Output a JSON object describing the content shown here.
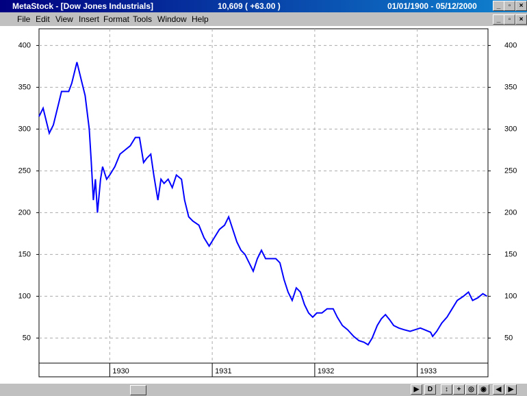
{
  "window": {
    "title": "MetaStock - [Dow Jones Industrials]",
    "quote": "10,609 ( +63.00 )",
    "date_range": "01/01/1900 - 05/12/2000"
  },
  "menu": [
    "File",
    "Edit",
    "View",
    "Insert",
    "Format",
    "Tools",
    "Window",
    "Help"
  ],
  "chart_data": {
    "type": "line",
    "color": "#0000ff",
    "grid": true,
    "xlim": [
      1929.31,
      1933.69
    ],
    "xticks": [
      1930,
      1931,
      1932,
      1933
    ],
    "ylim": [
      20,
      420
    ],
    "yticks": [
      50,
      100,
      150,
      200,
      250,
      300,
      350,
      400
    ],
    "x": [
      1929.31,
      1929.35,
      1929.38,
      1929.41,
      1929.45,
      1929.5,
      1929.53,
      1929.6,
      1929.63,
      1929.68,
      1929.72,
      1929.76,
      1929.8,
      1929.82,
      1929.84,
      1929.86,
      1929.88,
      1929.91,
      1929.93,
      1929.97,
      1930.0,
      1930.05,
      1930.1,
      1930.15,
      1930.2,
      1930.25,
      1930.29,
      1930.33,
      1930.36,
      1930.4,
      1930.43,
      1930.47,
      1930.5,
      1930.53,
      1930.57,
      1930.61,
      1930.65,
      1930.7,
      1930.73,
      1930.77,
      1930.81,
      1930.87,
      1930.92,
      1930.97,
      1931.02,
      1931.07,
      1931.12,
      1931.16,
      1931.2,
      1931.24,
      1931.28,
      1931.32,
      1931.36,
      1931.4,
      1931.44,
      1931.48,
      1931.52,
      1931.57,
      1931.62,
      1931.66,
      1931.7,
      1931.74,
      1931.78,
      1931.82,
      1931.86,
      1931.9,
      1931.94,
      1931.98,
      1932.02,
      1932.07,
      1932.12,
      1932.18,
      1932.22,
      1932.27,
      1932.32,
      1932.38,
      1932.43,
      1932.48,
      1932.52,
      1932.56,
      1932.61,
      1932.65,
      1932.69,
      1932.73,
      1932.77,
      1932.82,
      1932.87,
      1932.93,
      1932.98,
      1933.03,
      1933.07,
      1933.13,
      1933.15,
      1933.19,
      1933.24,
      1933.29,
      1933.34,
      1933.39,
      1933.45,
      1933.5,
      1933.54,
      1933.59,
      1933.64,
      1933.68
    ],
    "values": [
      315,
      325,
      310,
      295,
      305,
      330,
      345,
      345,
      355,
      380,
      360,
      340,
      300,
      260,
      215,
      240,
      200,
      240,
      255,
      240,
      245,
      255,
      270,
      275,
      280,
      290,
      290,
      260,
      265,
      270,
      245,
      215,
      240,
      235,
      240,
      230,
      245,
      240,
      215,
      195,
      190,
      185,
      170,
      160,
      170,
      180,
      185,
      195,
      180,
      165,
      155,
      150,
      140,
      130,
      145,
      155,
      145,
      145,
      145,
      140,
      120,
      105,
      95,
      110,
      105,
      90,
      80,
      75,
      80,
      80,
      85,
      85,
      75,
      65,
      60,
      52,
      47,
      45,
      42,
      50,
      65,
      73,
      78,
      72,
      65,
      62,
      60,
      58,
      60,
      62,
      60,
      57,
      52,
      58,
      68,
      75,
      85,
      95,
      100,
      105,
      95,
      98,
      103,
      100
    ]
  }
}
